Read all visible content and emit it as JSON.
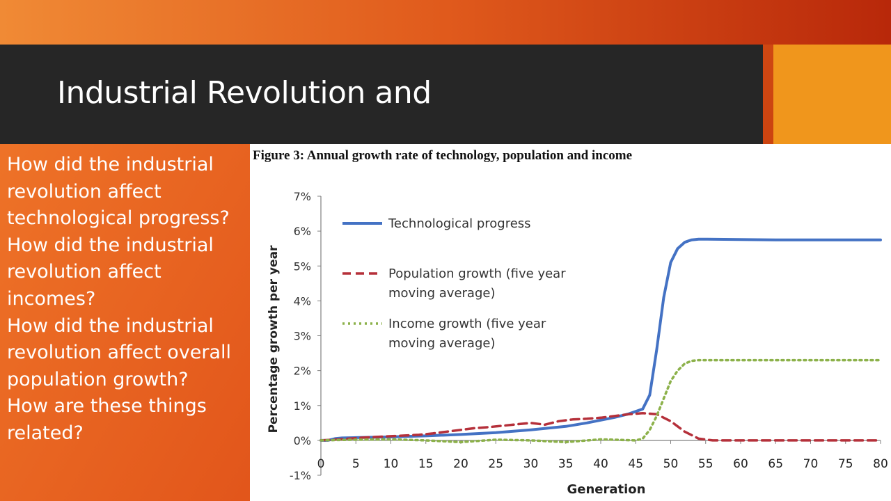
{
  "slide": {
    "title": "Industrial Revolution and",
    "bullets": [
      "How did the industrial revolution affect technological progress?",
      "How did the industrial revolution affect incomes?",
      "How did the industrial revolution affect overall population growth?",
      "How are these things related?"
    ],
    "colors": {
      "title_bar": "#262626",
      "accent": "#f0961c",
      "background": "#e2561b"
    }
  },
  "chart_data": {
    "type": "line",
    "title": "Figure 3: Annual growth rate of technology, population and income",
    "xlabel": "Generation",
    "ylabel": "Percentage growth per year",
    "xlim": [
      0,
      80
    ],
    "ylim": [
      -1,
      7
    ],
    "x_ticks": [
      "0",
      "5",
      "10",
      "15",
      "20",
      "25",
      "30",
      "35",
      "40",
      "45",
      "50",
      "55",
      "60",
      "65",
      "70",
      "75",
      "80"
    ],
    "y_ticks": [
      "-1%",
      "0%",
      "1%",
      "2%",
      "3%",
      "4%",
      "5%",
      "6%",
      "7%"
    ],
    "grid": false,
    "legend_position": "top-left",
    "series": [
      {
        "name": "Technological progress",
        "color": "#4472c4",
        "style": "solid",
        "x": [
          0,
          1,
          2,
          3,
          5,
          10,
          15,
          20,
          25,
          30,
          35,
          38,
          40,
          42,
          44,
          46,
          47,
          48,
          49,
          50,
          51,
          52,
          53,
          54,
          55,
          60,
          65,
          70,
          75,
          80
        ],
        "y": [
          0.0,
          0.0,
          0.05,
          0.07,
          0.08,
          0.1,
          0.13,
          0.17,
          0.22,
          0.3,
          0.4,
          0.5,
          0.58,
          0.66,
          0.76,
          0.9,
          1.3,
          2.6,
          4.1,
          5.1,
          5.5,
          5.68,
          5.75,
          5.77,
          5.77,
          5.76,
          5.75,
          5.75,
          5.75,
          5.75
        ]
      },
      {
        "name": "Population growth (five year moving average)",
        "color": "#b5303a",
        "style": "dashed",
        "x": [
          0,
          2,
          4,
          6,
          8,
          10,
          12,
          14,
          16,
          18,
          20,
          22,
          24,
          26,
          28,
          30,
          32,
          34,
          36,
          38,
          40,
          42,
          44,
          46,
          48,
          50,
          52,
          54,
          56,
          60,
          65,
          70,
          75,
          80
        ],
        "y": [
          0.0,
          0.02,
          0.05,
          0.08,
          0.1,
          0.12,
          0.14,
          0.16,
          0.2,
          0.25,
          0.3,
          0.35,
          0.38,
          0.42,
          0.46,
          0.5,
          0.45,
          0.55,
          0.6,
          0.62,
          0.65,
          0.7,
          0.75,
          0.78,
          0.75,
          0.55,
          0.25,
          0.05,
          0.0,
          0.0,
          0.0,
          0.0,
          0.0,
          0.0
        ]
      },
      {
        "name": "Income growth (five year moving average)",
        "color": "#8cb14a",
        "style": "dotted",
        "x": [
          0,
          5,
          10,
          15,
          20,
          25,
          30,
          35,
          40,
          45,
          46,
          47,
          48,
          49,
          50,
          51,
          52,
          53,
          54,
          55,
          60,
          65,
          70,
          75,
          80
        ],
        "y": [
          0.0,
          0.02,
          0.03,
          0.0,
          -0.05,
          0.02,
          0.0,
          -0.05,
          0.03,
          0.0,
          0.05,
          0.3,
          0.7,
          1.2,
          1.7,
          2.0,
          2.2,
          2.28,
          2.3,
          2.3,
          2.3,
          2.3,
          2.3,
          2.3,
          2.3
        ]
      }
    ]
  }
}
